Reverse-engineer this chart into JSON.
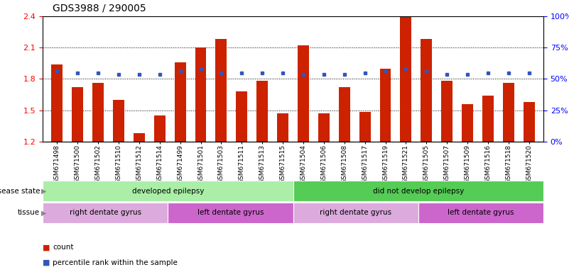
{
  "title": "GDS3988 / 290005",
  "samples": [
    "GSM671498",
    "GSM671500",
    "GSM671502",
    "GSM671510",
    "GSM671512",
    "GSM671514",
    "GSM671499",
    "GSM671501",
    "GSM671503",
    "GSM671511",
    "GSM671513",
    "GSM671515",
    "GSM671504",
    "GSM671506",
    "GSM671508",
    "GSM671517",
    "GSM671519",
    "GSM671521",
    "GSM671505",
    "GSM671507",
    "GSM671509",
    "GSM671516",
    "GSM671518",
    "GSM671520"
  ],
  "bar_values": [
    1.94,
    1.72,
    1.76,
    1.6,
    1.28,
    1.45,
    1.96,
    2.1,
    2.18,
    1.68,
    1.78,
    1.47,
    2.12,
    1.47,
    1.72,
    1.48,
    1.9,
    2.4,
    2.18,
    1.78,
    1.56,
    1.64,
    1.76,
    1.58
  ],
  "dot_values": [
    1.88,
    1.86,
    1.86,
    1.84,
    1.84,
    1.84,
    1.88,
    1.9,
    1.86,
    1.86,
    1.86,
    1.86,
    1.84,
    1.84,
    1.84,
    1.86,
    1.88,
    1.9,
    1.88,
    1.84,
    1.84,
    1.86,
    1.86,
    1.86
  ],
  "bar_color": "#CC2200",
  "dot_color": "#3355BB",
  "ylim_left": [
    1.2,
    2.4
  ],
  "yticks_left": [
    1.2,
    1.5,
    1.8,
    2.1,
    2.4
  ],
  "ylim_right": [
    0,
    100
  ],
  "yticks_right": [
    0,
    25,
    50,
    75,
    100
  ],
  "ytick_labels_right": [
    "0%",
    "25%",
    "50%",
    "75%",
    "100%"
  ],
  "disease_state_groups": [
    {
      "label": "developed epilepsy",
      "start": 0,
      "end": 12,
      "color": "#AAEEA8"
    },
    {
      "label": "did not develop epilepsy",
      "start": 12,
      "end": 24,
      "color": "#55CC55"
    }
  ],
  "tissue_groups": [
    {
      "label": "right dentate gyrus",
      "start": 0,
      "end": 6,
      "color": "#DDAADD"
    },
    {
      "label": "left dentate gyrus",
      "start": 6,
      "end": 12,
      "color": "#CC66CC"
    },
    {
      "label": "right dentate gyrus",
      "start": 12,
      "end": 18,
      "color": "#DDAADD"
    },
    {
      "label": "left dentate gyrus",
      "start": 18,
      "end": 24,
      "color": "#CC66CC"
    }
  ],
  "bar_width": 0.55,
  "background_color": "#FFFFFF",
  "title_fontsize": 10,
  "tick_fontsize": 6.5,
  "label_row1": "disease state",
  "label_row2": "tissue"
}
